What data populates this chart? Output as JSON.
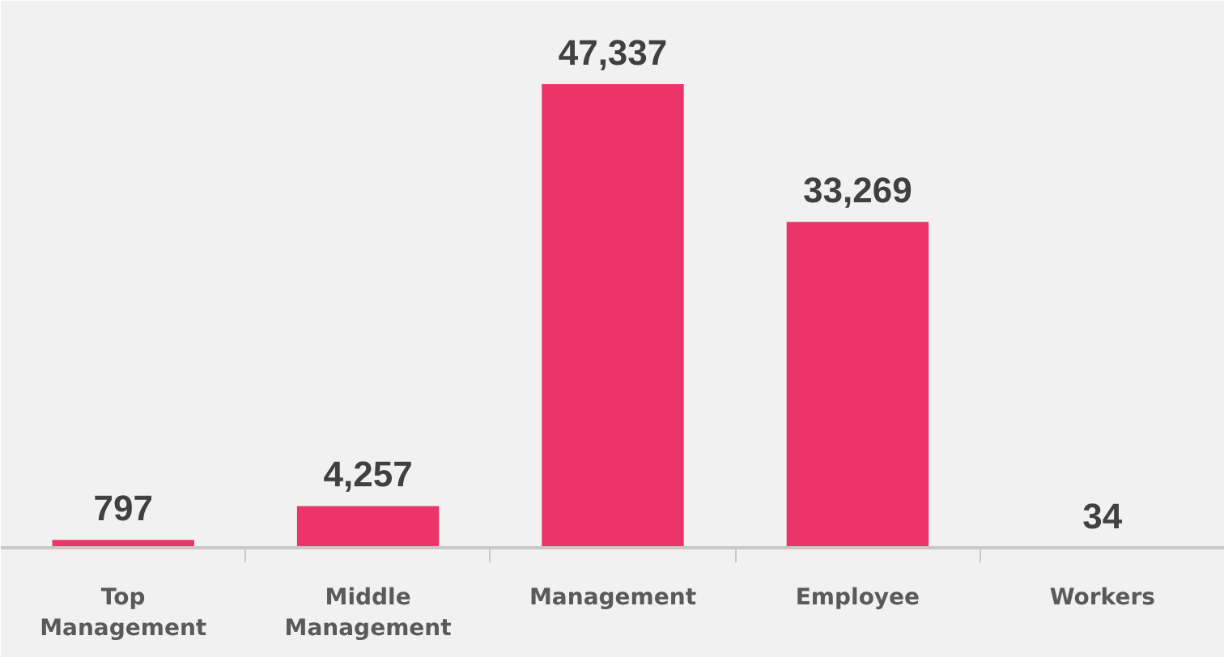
{
  "chart_data": {
    "type": "bar",
    "categories": [
      "Top Management",
      "Middle Management",
      "Management",
      "Employee",
      "Workers"
    ],
    "values": [
      797,
      4257,
      47337,
      33269,
      34
    ],
    "value_labels": [
      "797",
      "4,257",
      "47,337",
      "33,269",
      "34"
    ],
    "color": "#eb3467",
    "grid": false
  }
}
